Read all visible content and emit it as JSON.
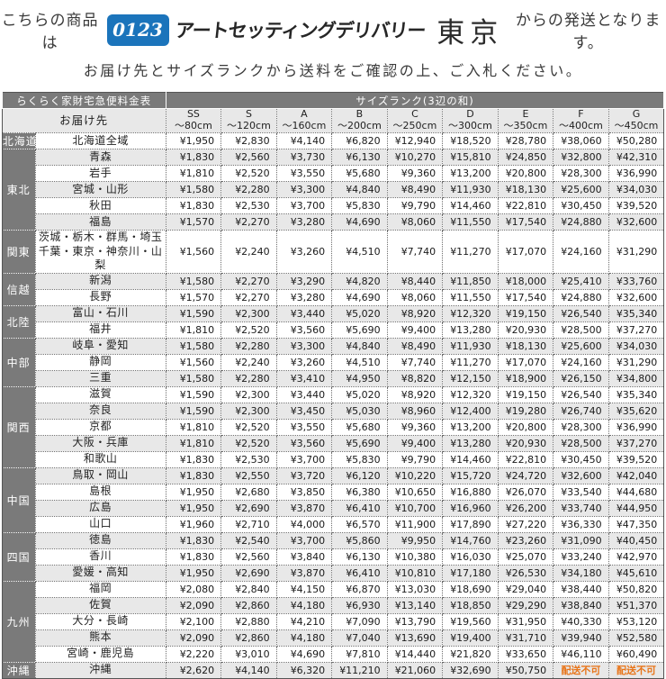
{
  "intro": {
    "line1_prefix": "こちらの商品は",
    "line1_suffix": "からの発送となります。",
    "logo_number": "0123",
    "logo_name": "アートセッティングデリバリー",
    "logo_city": "東京",
    "line2": "お届け先とサイズランクから送料をご確認の上、ご入札ください。"
  },
  "colors": {
    "logo_blue": "#1b74bb",
    "header_gray": "#7a7a7a",
    "stripe_gray": "#e8e8e8",
    "na_orange": "#e8751a"
  },
  "table": {
    "title": "らくらく家財宅急便料金表",
    "size_rank_header": "サイズランク(3辺の和)",
    "destination_header": "お届け先",
    "not_available_label": "配送不可",
    "size_columns": [
      {
        "rank": "SS",
        "size": "～80cm"
      },
      {
        "rank": "S",
        "size": "～120cm"
      },
      {
        "rank": "A",
        "size": "～160cm"
      },
      {
        "rank": "B",
        "size": "～200cm"
      },
      {
        "rank": "C",
        "size": "～250cm"
      },
      {
        "rank": "D",
        "size": "～300cm"
      },
      {
        "rank": "E",
        "size": "～350cm"
      },
      {
        "rank": "F",
        "size": "～400cm"
      },
      {
        "rank": "G",
        "size": "～450cm"
      }
    ],
    "regions": [
      {
        "name": "北海道",
        "rows": [
          {
            "dest": "北海道全域",
            "prices": [
              "¥1,950",
              "¥2,830",
              "¥4,140",
              "¥6,820",
              "¥12,940",
              "¥18,520",
              "¥28,780",
              "¥38,060",
              "¥50,280"
            ]
          }
        ]
      },
      {
        "name": "東北",
        "rows": [
          {
            "dest": "青森",
            "prices": [
              "¥1,830",
              "¥2,560",
              "¥3,730",
              "¥6,130",
              "¥10,270",
              "¥15,810",
              "¥24,850",
              "¥32,800",
              "¥42,310"
            ]
          },
          {
            "dest": "岩手",
            "prices": [
              "¥1,810",
              "¥2,520",
              "¥3,550",
              "¥5,680",
              "¥9,360",
              "¥13,200",
              "¥20,800",
              "¥28,300",
              "¥36,990"
            ]
          },
          {
            "dest": "宮城・山形",
            "prices": [
              "¥1,580",
              "¥2,280",
              "¥3,300",
              "¥4,840",
              "¥8,490",
              "¥11,930",
              "¥18,130",
              "¥25,600",
              "¥34,030"
            ]
          },
          {
            "dest": "秋田",
            "prices": [
              "¥1,830",
              "¥2,530",
              "¥3,700",
              "¥5,830",
              "¥9,790",
              "¥14,460",
              "¥22,810",
              "¥30,450",
              "¥39,520"
            ]
          },
          {
            "dest": "福島",
            "prices": [
              "¥1,570",
              "¥2,270",
              "¥3,280",
              "¥4,690",
              "¥8,060",
              "¥11,550",
              "¥17,540",
              "¥24,880",
              "¥32,600"
            ]
          }
        ]
      },
      {
        "name": "関東",
        "rows": [
          {
            "dest": "茨城・栃木・群馬・埼玉\n千葉・東京・神奈川・山梨",
            "tall": true,
            "prices": [
              "¥1,560",
              "¥2,240",
              "¥3,260",
              "¥4,510",
              "¥7,740",
              "¥11,270",
              "¥17,070",
              "¥24,160",
              "¥31,290"
            ]
          }
        ]
      },
      {
        "name": "信越",
        "rows": [
          {
            "dest": "新潟",
            "prices": [
              "¥1,580",
              "¥2,270",
              "¥3,290",
              "¥4,820",
              "¥8,440",
              "¥11,850",
              "¥18,000",
              "¥25,410",
              "¥33,760"
            ]
          },
          {
            "dest": "長野",
            "prices": [
              "¥1,570",
              "¥2,270",
              "¥3,280",
              "¥4,690",
              "¥8,060",
              "¥11,550",
              "¥17,540",
              "¥24,880",
              "¥32,600"
            ]
          }
        ]
      },
      {
        "name": "北陸",
        "rows": [
          {
            "dest": "富山・石川",
            "prices": [
              "¥1,590",
              "¥2,300",
              "¥3,440",
              "¥5,020",
              "¥8,920",
              "¥12,320",
              "¥19,150",
              "¥26,540",
              "¥35,340"
            ]
          },
          {
            "dest": "福井",
            "prices": [
              "¥1,810",
              "¥2,520",
              "¥3,560",
              "¥5,690",
              "¥9,400",
              "¥13,280",
              "¥20,930",
              "¥28,500",
              "¥37,270"
            ]
          }
        ]
      },
      {
        "name": "中部",
        "rows": [
          {
            "dest": "岐阜・愛知",
            "prices": [
              "¥1,580",
              "¥2,280",
              "¥3,300",
              "¥4,840",
              "¥8,490",
              "¥11,930",
              "¥18,130",
              "¥25,600",
              "¥34,030"
            ]
          },
          {
            "dest": "静岡",
            "prices": [
              "¥1,560",
              "¥2,240",
              "¥3,260",
              "¥4,510",
              "¥7,740",
              "¥11,270",
              "¥17,070",
              "¥24,160",
              "¥31,290"
            ]
          },
          {
            "dest": "三重",
            "prices": [
              "¥1,580",
              "¥2,280",
              "¥3,410",
              "¥4,950",
              "¥8,820",
              "¥12,150",
              "¥18,900",
              "¥26,150",
              "¥34,800"
            ]
          }
        ]
      },
      {
        "name": "関西",
        "rows": [
          {
            "dest": "滋賀",
            "prices": [
              "¥1,590",
              "¥2,300",
              "¥3,440",
              "¥5,020",
              "¥8,920",
              "¥12,320",
              "¥19,150",
              "¥26,540",
              "¥35,340"
            ]
          },
          {
            "dest": "奈良",
            "prices": [
              "¥1,590",
              "¥2,300",
              "¥3,450",
              "¥5,030",
              "¥8,960",
              "¥12,400",
              "¥19,280",
              "¥26,740",
              "¥35,620"
            ]
          },
          {
            "dest": "京都",
            "prices": [
              "¥1,810",
              "¥2,520",
              "¥3,550",
              "¥5,680",
              "¥9,360",
              "¥13,200",
              "¥20,800",
              "¥28,300",
              "¥36,990"
            ]
          },
          {
            "dest": "大阪・兵庫",
            "prices": [
              "¥1,810",
              "¥2,520",
              "¥3,560",
              "¥5,690",
              "¥9,400",
              "¥13,280",
              "¥20,930",
              "¥28,500",
              "¥37,270"
            ]
          },
          {
            "dest": "和歌山",
            "prices": [
              "¥1,830",
              "¥2,530",
              "¥3,700",
              "¥5,830",
              "¥9,790",
              "¥14,460",
              "¥22,810",
              "¥30,450",
              "¥39,520"
            ]
          }
        ]
      },
      {
        "name": "中国",
        "rows": [
          {
            "dest": "鳥取・岡山",
            "prices": [
              "¥1,830",
              "¥2,550",
              "¥3,720",
              "¥6,120",
              "¥10,220",
              "¥15,720",
              "¥24,720",
              "¥32,600",
              "¥42,040"
            ]
          },
          {
            "dest": "島根",
            "prices": [
              "¥1,950",
              "¥2,680",
              "¥3,850",
              "¥6,380",
              "¥10,650",
              "¥16,880",
              "¥26,070",
              "¥33,540",
              "¥44,680"
            ]
          },
          {
            "dest": "広島",
            "prices": [
              "¥1,950",
              "¥2,690",
              "¥3,870",
              "¥6,410",
              "¥10,700",
              "¥16,960",
              "¥26,200",
              "¥33,740",
              "¥44,950"
            ]
          },
          {
            "dest": "山口",
            "prices": [
              "¥1,960",
              "¥2,710",
              "¥4,000",
              "¥6,570",
              "¥11,900",
              "¥17,890",
              "¥27,220",
              "¥36,330",
              "¥47,350"
            ]
          }
        ]
      },
      {
        "name": "四国",
        "rows": [
          {
            "dest": "徳島",
            "prices": [
              "¥1,830",
              "¥2,540",
              "¥3,700",
              "¥5,860",
              "¥9,950",
              "¥14,760",
              "¥23,260",
              "¥31,090",
              "¥40,450"
            ]
          },
          {
            "dest": "香川",
            "prices": [
              "¥1,830",
              "¥2,560",
              "¥3,840",
              "¥6,130",
              "¥10,380",
              "¥16,030",
              "¥25,070",
              "¥33,240",
              "¥42,970"
            ]
          },
          {
            "dest": "愛媛・高知",
            "prices": [
              "¥1,950",
              "¥2,690",
              "¥3,870",
              "¥6,410",
              "¥10,810",
              "¥17,180",
              "¥26,530",
              "¥34,180",
              "¥45,610"
            ]
          }
        ]
      },
      {
        "name": "九州",
        "rows": [
          {
            "dest": "福岡",
            "prices": [
              "¥2,080",
              "¥2,840",
              "¥4,150",
              "¥6,870",
              "¥13,030",
              "¥18,690",
              "¥29,040",
              "¥38,440",
              "¥50,820"
            ]
          },
          {
            "dest": "佐賀",
            "prices": [
              "¥2,090",
              "¥2,860",
              "¥4,180",
              "¥6,930",
              "¥13,140",
              "¥18,850",
              "¥29,290",
              "¥38,840",
              "¥51,370"
            ]
          },
          {
            "dest": "大分・長崎",
            "prices": [
              "¥2,100",
              "¥2,880",
              "¥4,210",
              "¥7,090",
              "¥13,790",
              "¥19,560",
              "¥31,950",
              "¥40,330",
              "¥53,120"
            ]
          },
          {
            "dest": "熊本",
            "prices": [
              "¥2,090",
              "¥2,860",
              "¥4,180",
              "¥7,040",
              "¥13,690",
              "¥19,400",
              "¥31,710",
              "¥39,940",
              "¥52,580"
            ]
          },
          {
            "dest": "宮崎・鹿児島",
            "prices": [
              "¥2,220",
              "¥3,010",
              "¥4,690",
              "¥7,810",
              "¥14,440",
              "¥21,820",
              "¥33,650",
              "¥46,110",
              "¥60,490"
            ]
          }
        ]
      },
      {
        "name": "沖縄",
        "rows": [
          {
            "dest": "沖縄",
            "prices": [
              "¥2,620",
              "¥4,140",
              "¥6,320",
              "¥11,210",
              "¥21,060",
              "¥32,690",
              "¥50,750",
              "配送不可",
              "配送不可"
            ]
          }
        ]
      }
    ]
  }
}
